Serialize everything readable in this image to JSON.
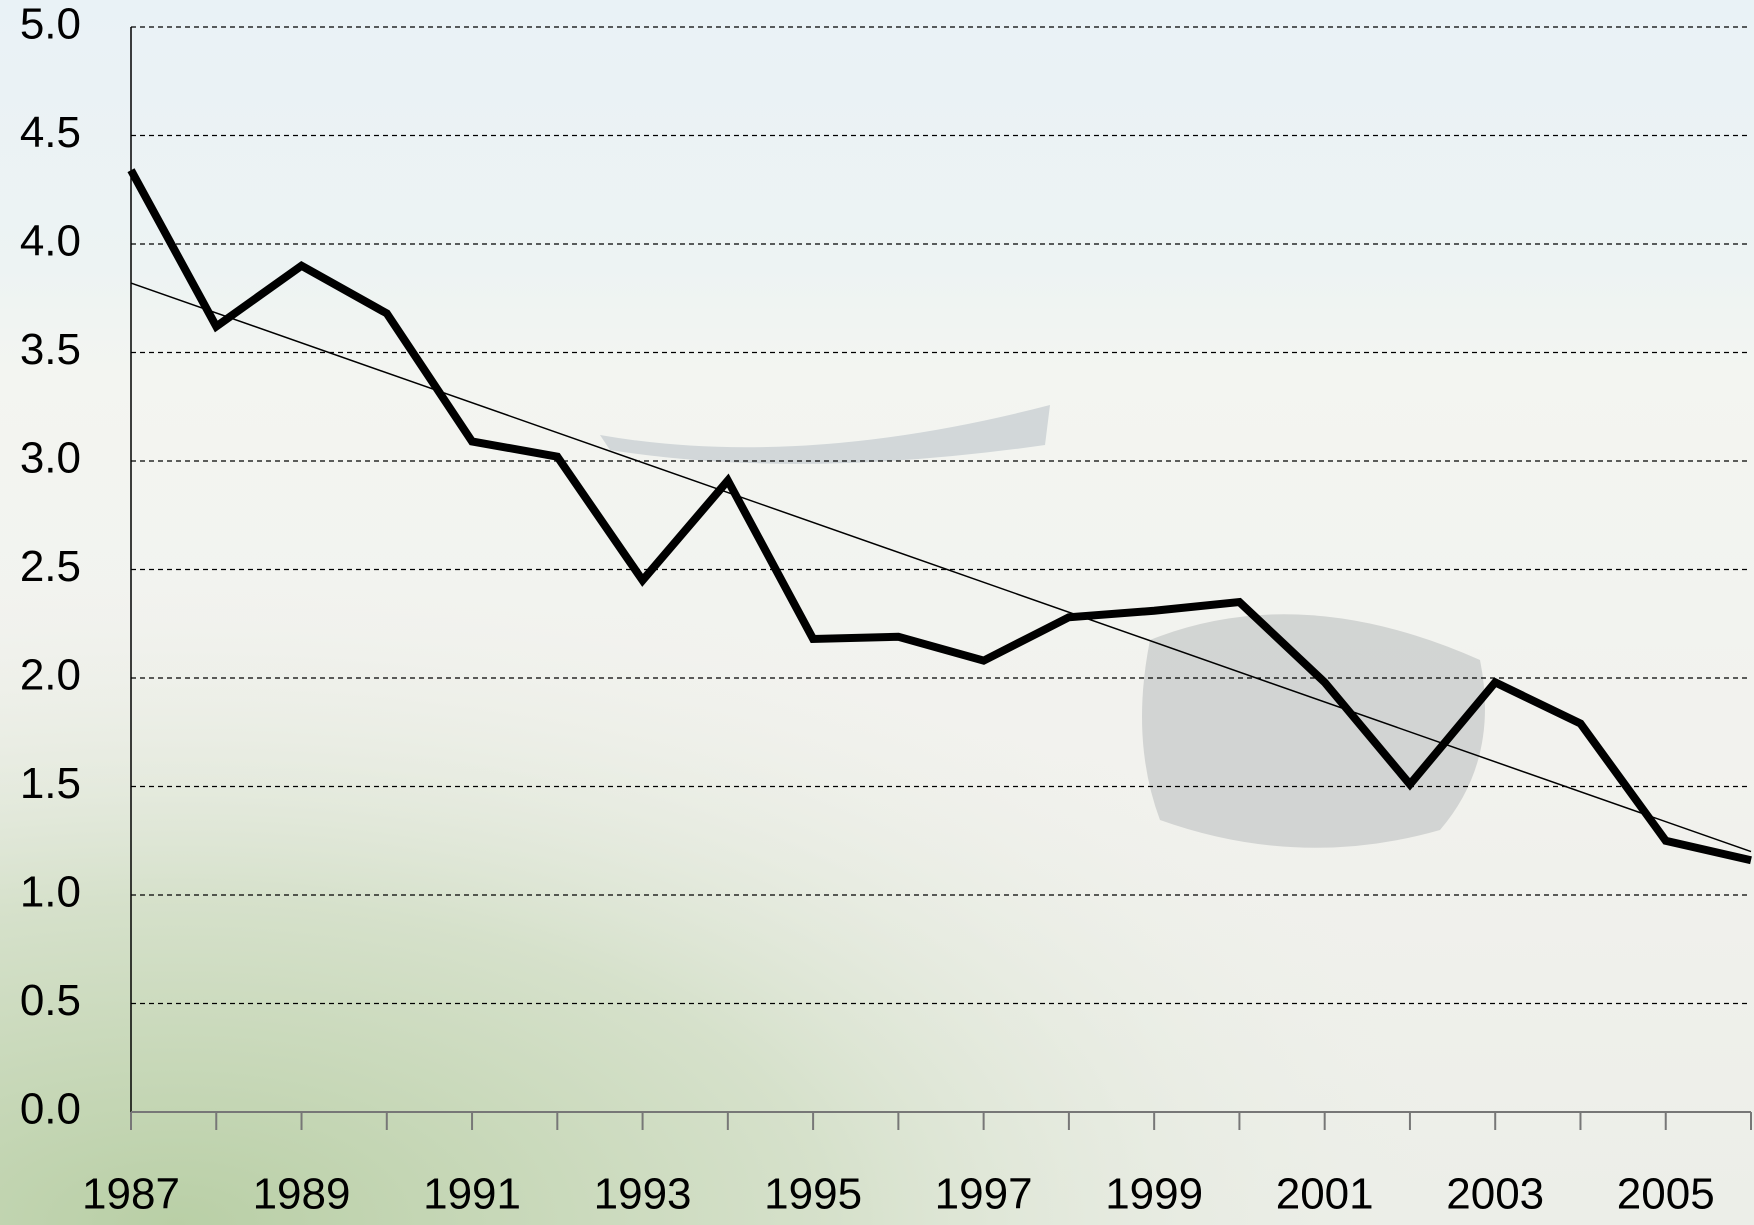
{
  "chart_data": {
    "type": "line",
    "categories": [
      "1987",
      null,
      "1989",
      null,
      "1991",
      null,
      "1993",
      null,
      "1995",
      null,
      "1997",
      null,
      "1999",
      null,
      "2001",
      null,
      "2003",
      null,
      "2005",
      null
    ],
    "values": [
      4.34,
      3.62,
      3.9,
      3.68,
      3.09,
      3.02,
      2.45,
      2.91,
      2.18,
      2.19,
      2.08,
      2.28,
      2.31,
      2.35,
      1.98,
      1.51,
      1.98,
      1.79,
      1.25,
      1.16
    ],
    "color": "#000000",
    "trend_values": [
      3.82,
      1.2
    ],
    "trend_color": "#000000",
    "ylim": [
      0,
      5
    ],
    "yticks": [
      {
        "value": 0,
        "label": "0.0"
      },
      {
        "value": 0.5,
        "label": "0.5"
      },
      {
        "value": 1,
        "label": "1.0"
      },
      {
        "value": 1.5,
        "label": "1.5"
      },
      {
        "value": 2,
        "label": "2.0"
      },
      {
        "value": 2.5,
        "label": "2.5"
      },
      {
        "value": 3,
        "label": "3.0"
      },
      {
        "value": 3.5,
        "label": "3.5"
      },
      {
        "value": 4,
        "label": "4.0"
      },
      {
        "value": 4.5,
        "label": "4.5"
      },
      {
        "value": 5,
        "label": "5.0"
      }
    ],
    "grid": true
  }
}
